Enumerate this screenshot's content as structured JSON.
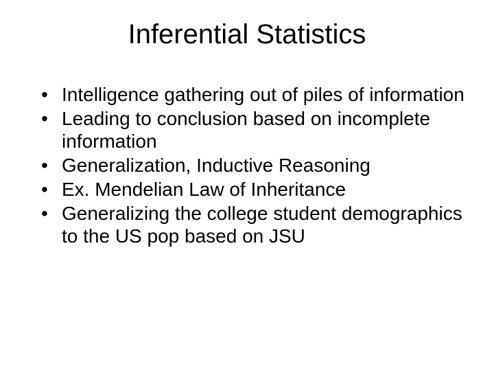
{
  "slide": {
    "title": "Inferential Statistics",
    "title_fontsize": 40,
    "title_align": "center",
    "background_color": "#ffffff",
    "text_color": "#000000",
    "font_family": "Arial",
    "bullets": [
      "Intelligence gathering out of piles of information",
      "Leading to conclusion based on incomplete information",
      "Generalization, Inductive Reasoning",
      "Ex. Mendelian Law of Inheritance",
      "Generalizing the college student demographics to the US pop based on JSU"
    ],
    "bullet_fontsize": 28,
    "bullet_marker": "•"
  }
}
